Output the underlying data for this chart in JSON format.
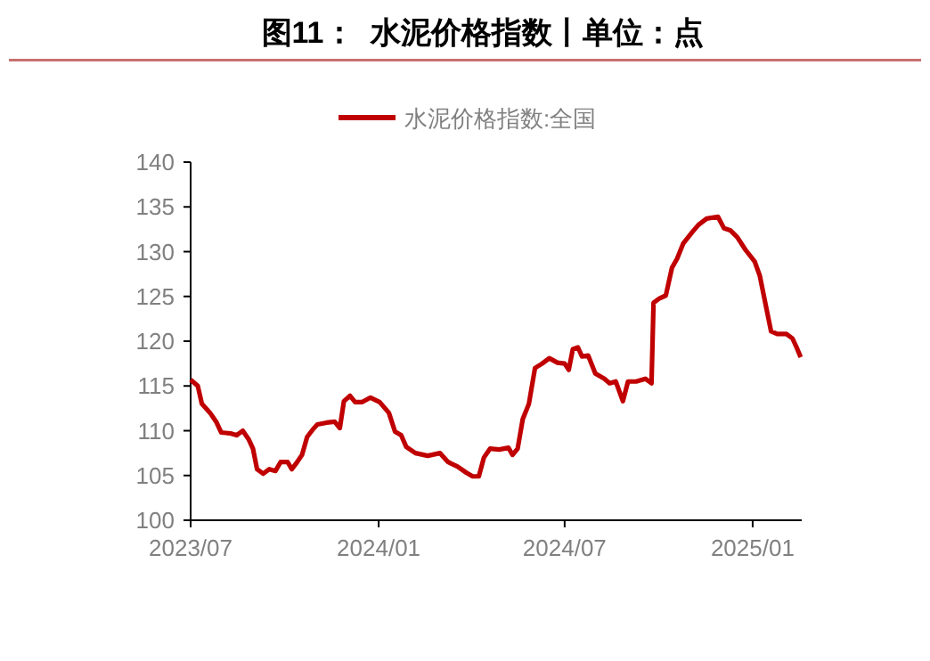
{
  "chart_data": {
    "type": "line",
    "title": "图11：  水泥价格指数丨单位：点",
    "legend": "top",
    "grid": false,
    "xlim": [
      "2023-07-01",
      "2025-02-18"
    ],
    "xticks": [
      {
        "value": "2023-07-01",
        "label": "2023/07"
      },
      {
        "value": "2024-01-01",
        "label": "2024/01"
      },
      {
        "value": "2024-07-01",
        "label": "2024/07"
      },
      {
        "value": "2025-01-01",
        "label": "2025/01"
      }
    ],
    "ylim": [
      100,
      140
    ],
    "yticks": [
      100,
      105,
      110,
      115,
      120,
      125,
      130,
      135,
      140
    ],
    "series": [
      {
        "name": "水泥价格指数:全国",
        "color": "#c00000",
        "x": [
          "2023-07-01",
          "2023-07-08",
          "2023-07-12",
          "2023-07-20",
          "2023-07-26",
          "2023-07-31",
          "2023-08-09",
          "2023-08-15",
          "2023-08-21",
          "2023-08-27",
          "2023-08-31",
          "2023-09-04",
          "2023-09-10",
          "2023-09-16",
          "2023-09-22",
          "2023-09-27",
          "2023-10-04",
          "2023-10-08",
          "2023-10-12",
          "2023-10-18",
          "2023-10-23",
          "2023-10-29",
          "2023-11-02",
          "2023-11-11",
          "2023-11-19",
          "2023-11-24",
          "2023-11-28",
          "2023-12-04",
          "2023-12-09",
          "2023-12-16",
          "2023-12-24",
          "2024-01-02",
          "2024-01-11",
          "2024-01-17",
          "2024-01-23",
          "2024-01-28",
          "2024-02-06",
          "2024-02-18",
          "2024-03-01",
          "2024-03-09",
          "2024-03-18",
          "2024-03-27",
          "2024-04-02",
          "2024-04-08",
          "2024-04-13",
          "2024-04-19",
          "2024-04-28",
          "2024-05-07",
          "2024-05-11",
          "2024-05-16",
          "2024-05-21",
          "2024-05-27",
          "2024-06-02",
          "2024-06-09",
          "2024-06-16",
          "2024-06-24",
          "2024-07-01",
          "2024-07-05",
          "2024-07-09",
          "2024-07-14",
          "2024-07-18",
          "2024-07-24",
          "2024-07-31",
          "2024-08-09",
          "2024-08-14",
          "2024-08-20",
          "2024-08-27",
          "2024-09-01",
          "2024-09-09",
          "2024-09-18",
          "2024-09-24",
          "2024-09-26",
          "2024-10-02",
          "2024-10-08",
          "2024-10-14",
          "2024-10-19",
          "2024-10-25",
          "2024-11-03",
          "2024-11-09",
          "2024-11-17",
          "2024-11-28",
          "2024-12-04",
          "2024-12-10",
          "2024-12-17",
          "2024-12-25",
          "2025-01-03",
          "2025-01-08",
          "2025-01-14",
          "2025-01-19",
          "2025-01-25",
          "2025-02-03",
          "2025-02-09",
          "2025-02-13",
          "2025-02-17"
        ],
        "values": [
          115.7,
          115,
          113,
          112,
          111,
          109.8,
          109.7,
          109.5,
          110,
          109,
          108,
          105.7,
          105.2,
          105.7,
          105.5,
          106.5,
          106.5,
          105.7,
          106.3,
          107.3,
          109.3,
          110.2,
          110.7,
          110.9,
          111,
          110.3,
          113.3,
          113.9,
          113.2,
          113.2,
          113.7,
          113.2,
          112,
          109.9,
          109.5,
          108.2,
          107.5,
          107.2,
          107.5,
          106.5,
          106,
          105.3,
          104.9,
          104.9,
          107,
          108,
          107.9,
          108.1,
          107.3,
          108,
          111.3,
          113,
          117,
          117.5,
          118.1,
          117.6,
          117.5,
          116.8,
          119.1,
          119.3,
          118.3,
          118.4,
          116.4,
          115.8,
          115.3,
          115.5,
          113.3,
          115.5,
          115.5,
          115.8,
          115.3,
          124.3,
          124.8,
          125.1,
          128.2,
          129.2,
          130.9,
          132.2,
          133,
          133.7,
          133.9,
          132.6,
          132.4,
          131.6,
          130.2,
          128.9,
          127.3,
          123.9,
          121.1,
          120.8,
          120.8,
          120.3,
          119.3,
          118.2
        ]
      }
    ]
  }
}
